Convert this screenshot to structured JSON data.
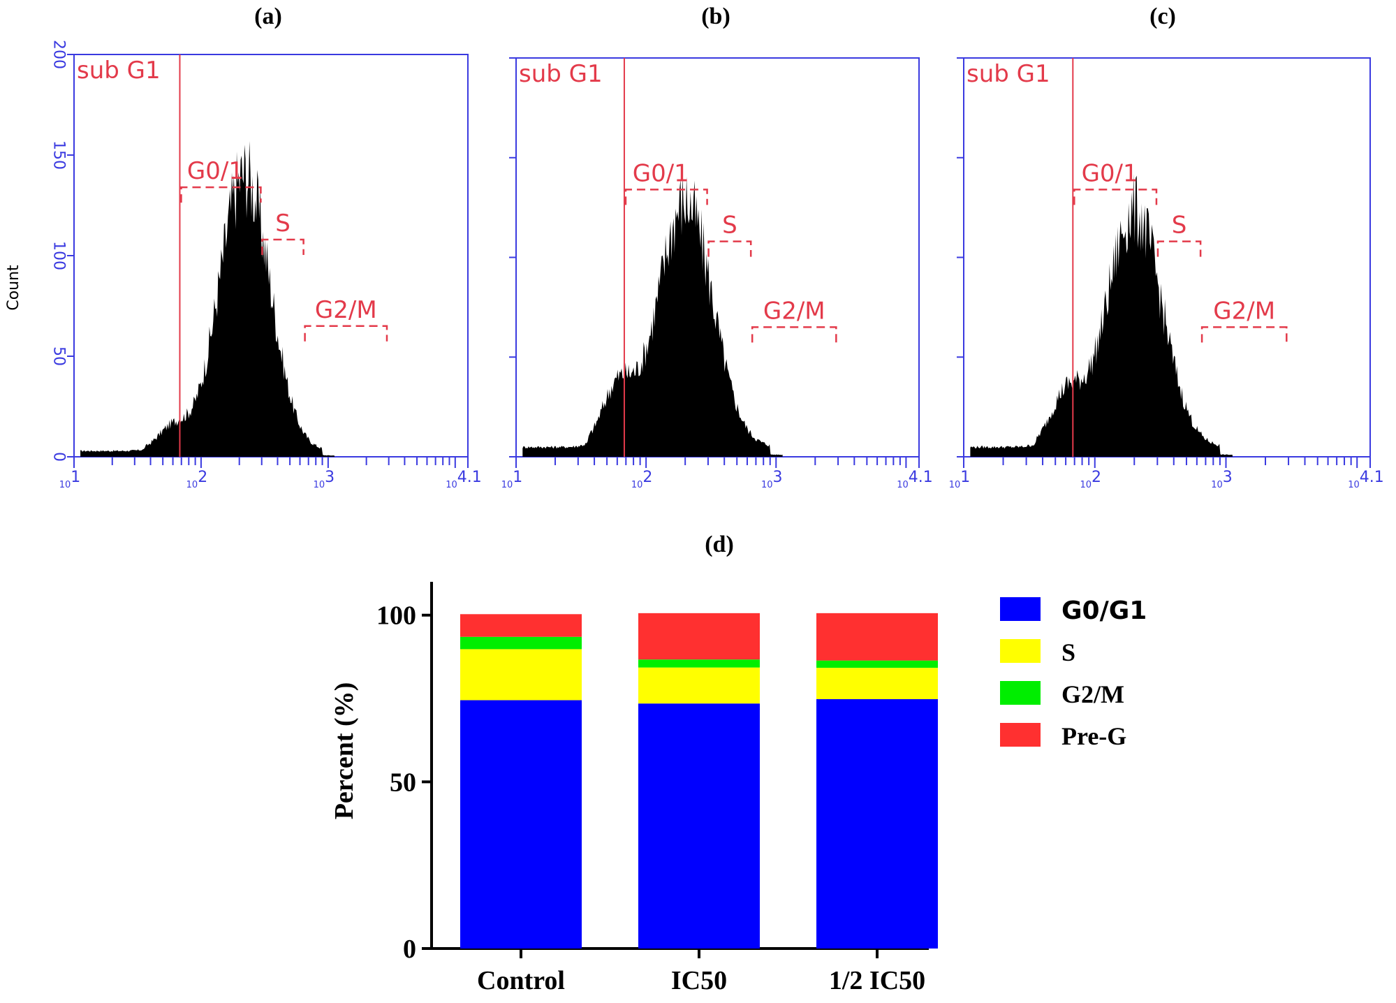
{
  "panel_labels": {
    "a": "(a)",
    "b": "(b)",
    "c": "(c)",
    "d": "(d)"
  },
  "colors": {
    "axis_blue": "#3a3ae0",
    "gate_red": "#e33a4a",
    "g0g1": "#0000ff",
    "s": "#ffff00",
    "g2m": "#00ee00",
    "preg": "#ff3030"
  },
  "chart_data": [
    {
      "type": "histogram",
      "panel": "(a)",
      "ylabel": "Count",
      "ylim": [
        0,
        200
      ],
      "yticks": [
        "0",
        "50",
        "100",
        "150",
        "200"
      ],
      "xscale": "log",
      "xlim": [
        10,
        12589
      ],
      "xticks": [
        "10^1",
        "10^2",
        "10^3",
        "10^4.1"
      ],
      "gates": [
        {
          "name": "sub G1",
          "label": "sub G1",
          "x_start": 10,
          "x_end": 68
        },
        {
          "name": "G0/1",
          "label": "G0/1",
          "x_start": 68,
          "x_end": 295,
          "level": 134
        },
        {
          "name": "S",
          "label": "S",
          "x_start": 295,
          "x_end": 640,
          "level": 108
        },
        {
          "name": "G2/M",
          "label": "G2/M",
          "x_start": 640,
          "x_end": 2900,
          "level": 65
        }
      ],
      "peak": {
        "x": 220,
        "count": 142
      },
      "spread": 0.2,
      "baseline": 3,
      "shoulder": 12
    },
    {
      "type": "histogram",
      "panel": "(b)",
      "ylim": [
        0,
        200
      ],
      "xscale": "log",
      "xlim": [
        10,
        12589
      ],
      "xticks": [
        "10^1",
        "10^2",
        "10^3",
        "10^4.1"
      ],
      "gates": [
        {
          "name": "sub G1",
          "label": "sub G1",
          "x_start": 10,
          "x_end": 68
        },
        {
          "name": "G0/1",
          "label": "G0/1",
          "x_start": 68,
          "x_end": 295,
          "level": 134
        },
        {
          "name": "S",
          "label": "S",
          "x_start": 295,
          "x_end": 640,
          "level": 108
        },
        {
          "name": "G2/M",
          "label": "G2/M",
          "x_start": 640,
          "x_end": 2900,
          "level": 65
        }
      ],
      "peak": {
        "x": 200,
        "count": 127
      },
      "spread": 0.21,
      "baseline": 5,
      "shoulder": 30
    },
    {
      "type": "histogram",
      "panel": "(c)",
      "ylim": [
        0,
        200
      ],
      "xscale": "log",
      "xlim": [
        10,
        12589
      ],
      "xticks": [
        "10^1",
        "10^2",
        "10^3",
        "10^4.1"
      ],
      "gates": [
        {
          "name": "sub G1",
          "label": "sub G1",
          "x_start": 10,
          "x_end": 68
        },
        {
          "name": "G0/1",
          "label": "G0/1",
          "x_start": 68,
          "x_end": 295,
          "level": 134
        },
        {
          "name": "S",
          "label": "S",
          "x_start": 295,
          "x_end": 640,
          "level": 108
        },
        {
          "name": "G2/M",
          "label": "G2/M",
          "x_start": 640,
          "x_end": 2900,
          "level": 65
        }
      ],
      "peak": {
        "x": 200,
        "count": 122
      },
      "spread": 0.21,
      "baseline": 5,
      "shoulder": 26
    },
    {
      "type": "stacked_bar",
      "panel": "(d)",
      "ylabel": "Percent (%)",
      "ylim": [
        0,
        110
      ],
      "yticks": [
        0,
        50,
        100
      ],
      "categories": [
        "Control",
        "IC50",
        "1/2 IC50"
      ],
      "series": [
        {
          "name": "G0/G1",
          "values": [
            74.5,
            73.5,
            74.8
          ]
        },
        {
          "name": "S",
          "values": [
            15.3,
            10.8,
            9.4
          ]
        },
        {
          "name": "G2/M",
          "values": [
            3.7,
            2.4,
            2.2
          ]
        },
        {
          "name": "Pre-G",
          "values": [
            6.8,
            13.9,
            14.2
          ]
        }
      ],
      "legend": [
        "G0/G1",
        "S",
        "G2/M",
        "Pre-G"
      ],
      "legend_position": "right"
    }
  ]
}
